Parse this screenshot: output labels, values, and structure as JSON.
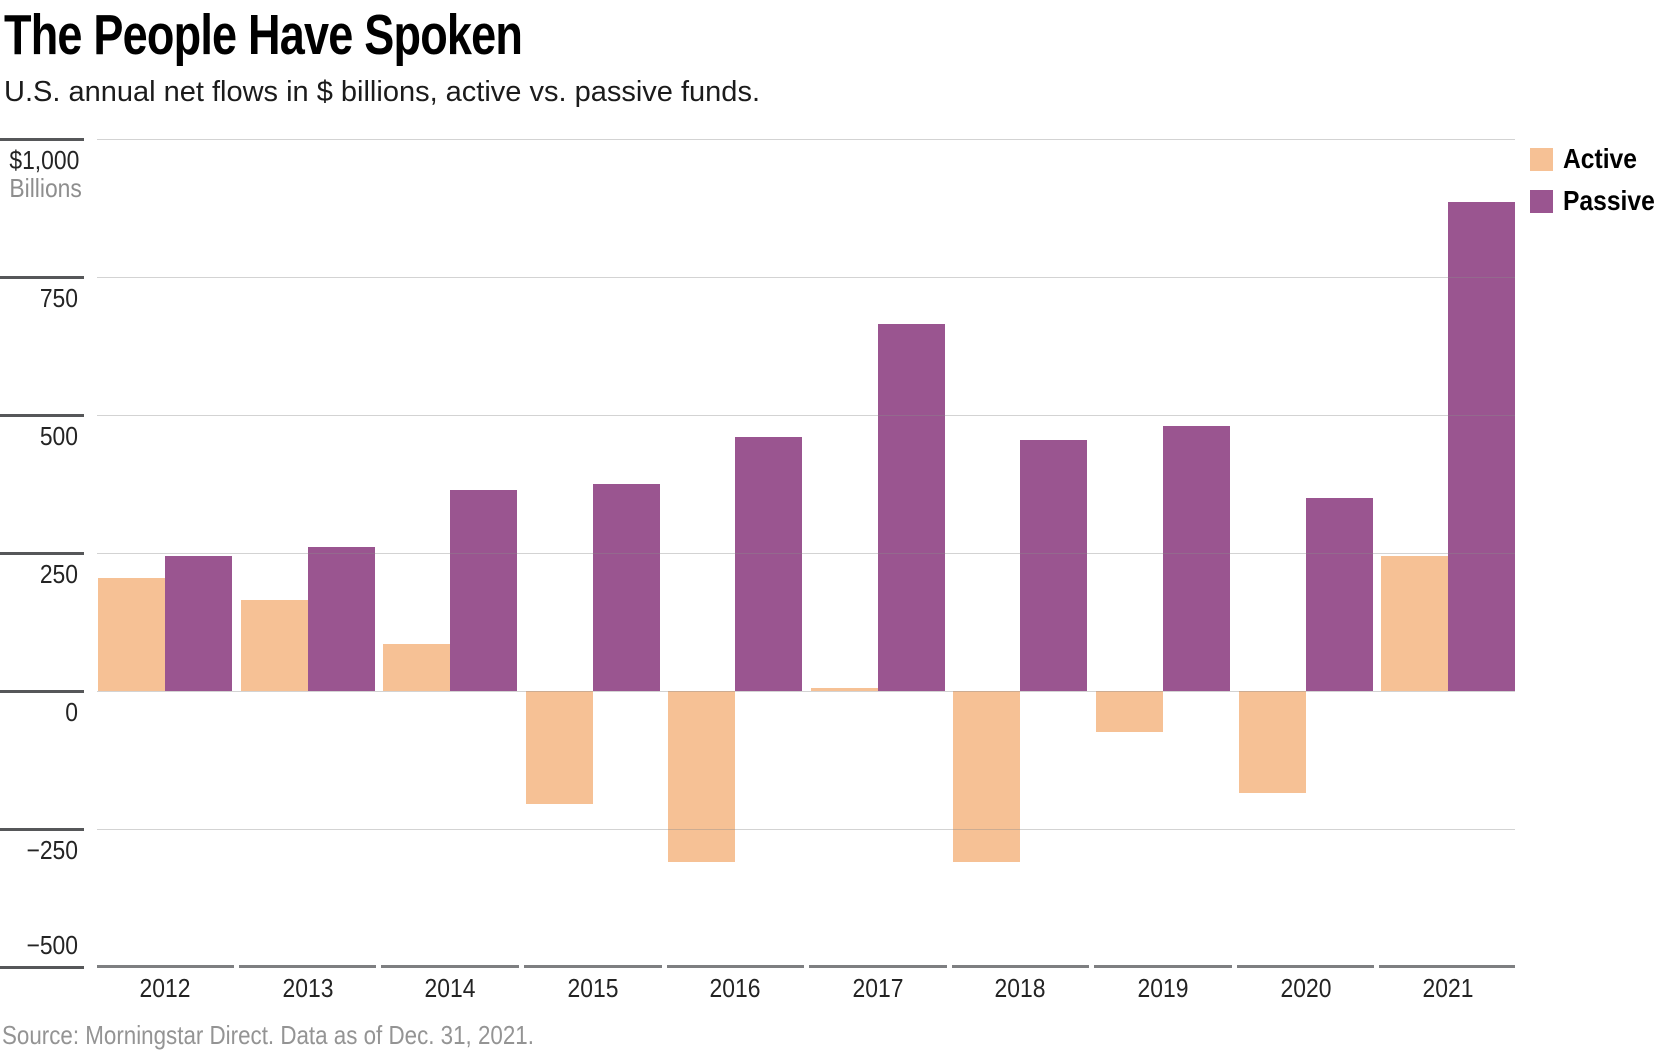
{
  "header": {
    "title": "The People Have Spoken",
    "subtitle": "U.S. annual net flows in $ billions, active vs. passive funds."
  },
  "legend": {
    "position": "top-right",
    "items": [
      {
        "label": "Active",
        "color": "#F6C195"
      },
      {
        "label": "Passive",
        "color": "#9A5590"
      }
    ]
  },
  "axis": {
    "y_top_label": "$1,000",
    "y_unit_label": "Billions",
    "ytick_labels": [
      "$1,000",
      "750",
      "500",
      "250",
      "0",
      "−250",
      "−500"
    ]
  },
  "footer": {
    "source": "Source: Morningstar Direct. Data as of Dec. 31, 2021."
  },
  "chart_data": {
    "type": "bar",
    "title": "The People Have Spoken",
    "subtitle": "U.S. annual net flows in $ billions, active vs. passive funds.",
    "categories": [
      "2012",
      "2013",
      "2014",
      "2015",
      "2016",
      "2017",
      "2018",
      "2019",
      "2020",
      "2021"
    ],
    "series": [
      {
        "name": "Active",
        "color": "#F6C195",
        "values": [
          205,
          165,
          85,
          -205,
          -310,
          5,
          -310,
          -75,
          -185,
          245
        ]
      },
      {
        "name": "Passive",
        "color": "#9A5590",
        "values": [
          245,
          260,
          365,
          375,
          460,
          665,
          455,
          480,
          350,
          885
        ]
      }
    ],
    "xlabel": "",
    "ylabel": "Billions",
    "ylim": [
      -500,
      1000
    ],
    "yticks": [
      1000,
      750,
      500,
      250,
      0,
      -250,
      -500
    ],
    "grid": true,
    "legend_position": "top-right"
  }
}
